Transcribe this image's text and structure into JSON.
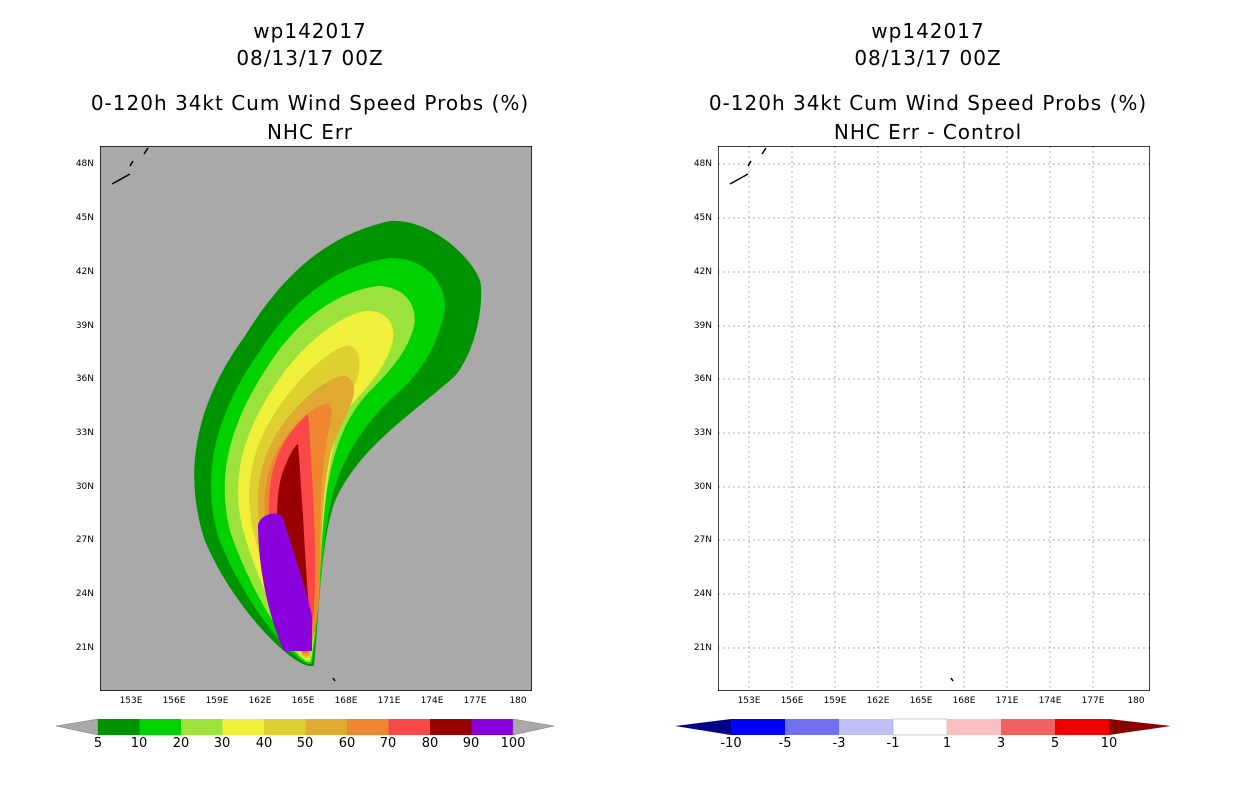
{
  "left": {
    "storm_id": "wp142017",
    "datetime": "08/13/17 00Z",
    "product": "0-120h 34kt Cum Wind Speed Probs (%)",
    "subtitle": "NHC Err",
    "colorbar": {
      "labels": [
        "5",
        "10",
        "20",
        "30",
        "40",
        "50",
        "60",
        "70",
        "80",
        "90",
        "100"
      ],
      "colors": [
        "#009300",
        "#00d200",
        "#9be33b",
        "#f0f03a",
        "#dfd032",
        "#e0aa30",
        "#ef8630",
        "#fa4848",
        "#990000",
        "#8a00dc"
      ]
    }
  },
  "right": {
    "storm_id": "wp142017",
    "datetime": "08/13/17 00Z",
    "product": "0-120h 34kt Cum Wind Speed Probs (%)",
    "subtitle": "NHC Err - Control",
    "colorbar": {
      "labels": [
        "-10",
        "-5",
        "-3",
        "-1",
        "1",
        "3",
        "5",
        "10"
      ],
      "colors": [
        "#00008b",
        "#0000ff",
        "#7070f0",
        "#c0c0f8",
        "#ffffff",
        "#fac0c0",
        "#f46060",
        "#f00000",
        "#8b0000"
      ]
    }
  },
  "axes": {
    "lat_labels": [
      "48N",
      "45N",
      "42N",
      "39N",
      "36N",
      "33N",
      "30N",
      "27N",
      "24N",
      "21N"
    ],
    "lon_labels": [
      "153E",
      "156E",
      "159E",
      "162E",
      "165E",
      "168E",
      "171E",
      "174E",
      "177E",
      "180"
    ]
  },
  "colors": {
    "land_sea_mask": "#a9a9a9",
    "background": "#ffffff"
  }
}
